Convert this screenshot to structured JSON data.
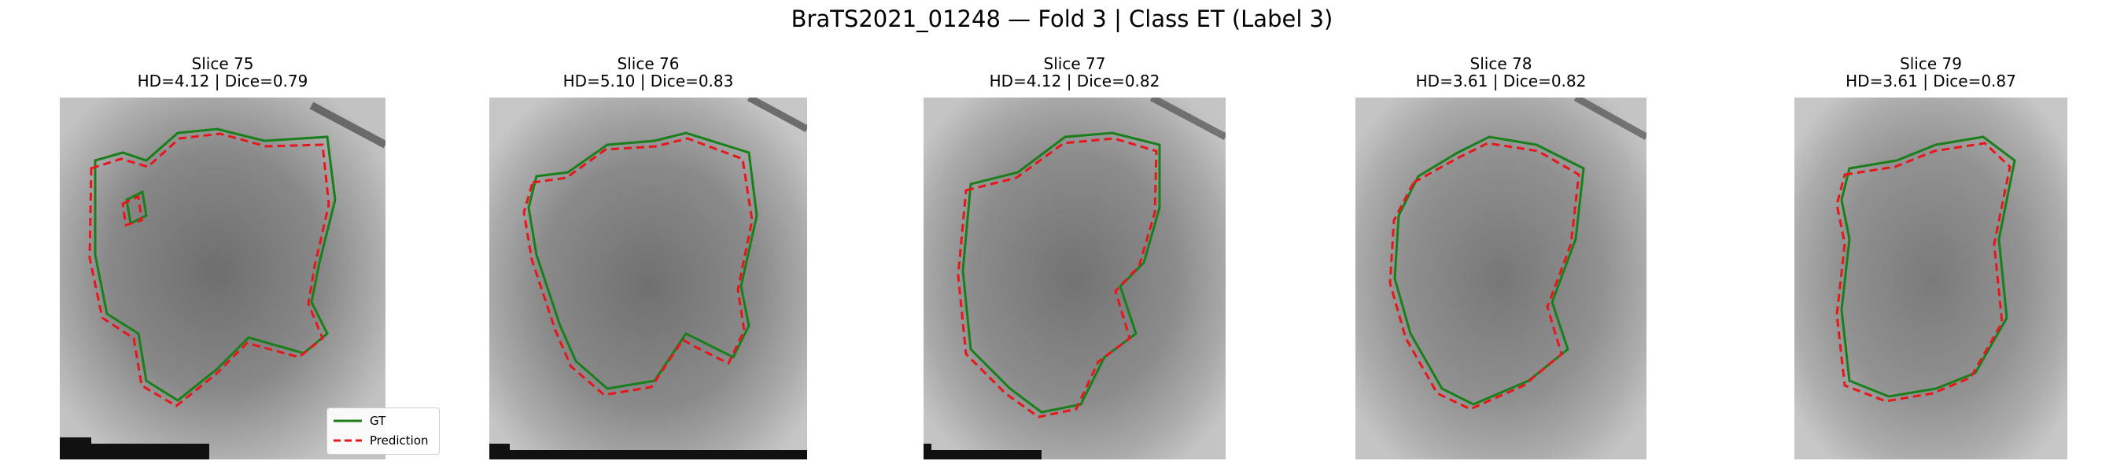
{
  "title": "BraTS2021_01248 — Fold 3 | Class ET (Label 3)",
  "legend": {
    "gt": {
      "label": "GT",
      "color": "#1a7f1a"
    },
    "pred": {
      "label": "Prediction",
      "color": "#e8161b"
    }
  },
  "panels": [
    {
      "title": "Slice 75",
      "metrics": "HD=4.12 | Dice=0.79"
    },
    {
      "title": "Slice 76",
      "metrics": "HD=5.10 | Dice=0.83"
    },
    {
      "title": "Slice 77",
      "metrics": "HD=4.12 | Dice=0.82"
    },
    {
      "title": "Slice 78",
      "metrics": "HD=3.61 | Dice=0.82"
    },
    {
      "title": "Slice 79",
      "metrics": "HD=3.61 | Dice=0.87"
    }
  ]
}
